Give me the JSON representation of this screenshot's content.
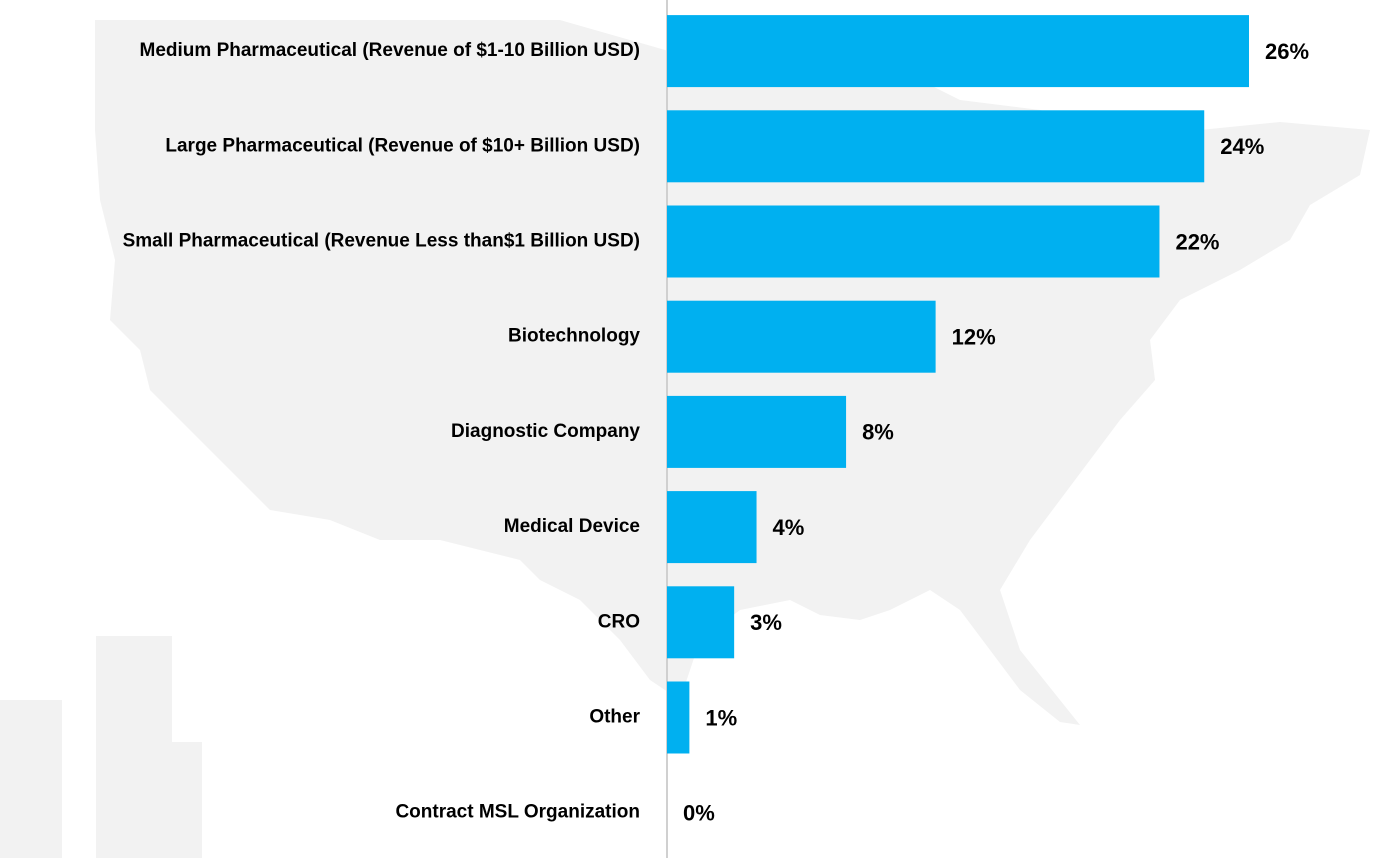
{
  "chart_data": {
    "type": "bar",
    "orientation": "horizontal",
    "categories": [
      "Medium Pharmaceutical (Revenue of $1-10 Billion USD)",
      "Large Pharmaceutical (Revenue of $10+ Billion USD)",
      "Small Pharmaceutical (Revenue Less than$1 Billion USD)",
      "Biotechnology",
      "Diagnostic Company",
      "Medical Device",
      "CRO",
      "Other",
      "Contract MSL Organization"
    ],
    "values": [
      26,
      24,
      22,
      12,
      8,
      4,
      3,
      1,
      0
    ],
    "value_labels": [
      "26%",
      "24%",
      "22%",
      "12%",
      "8%",
      "4%",
      "3%",
      "1%",
      "0%"
    ],
    "color": "#00b0f0"
  }
}
